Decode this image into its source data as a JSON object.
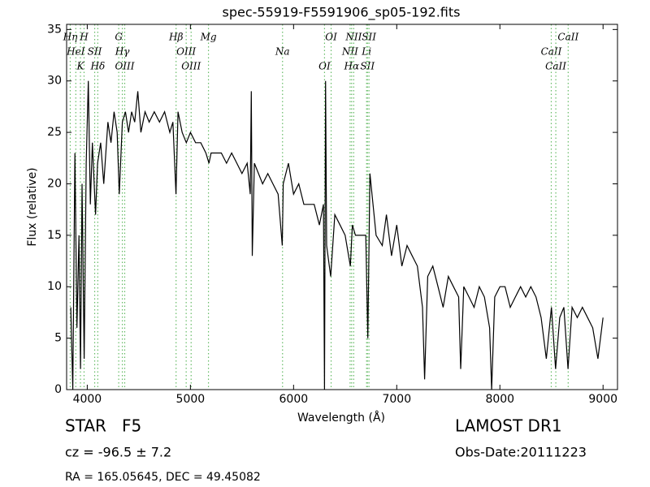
{
  "chart_data": {
    "type": "line",
    "title": "spec-55919-F5591906_sp05-192.fits",
    "x_label": "Wavelength (Å)",
    "y_label": "Flux (relative)",
    "xlim": [
      3800,
      9140
    ],
    "ylim": [
      0,
      35.5
    ],
    "xticks": [
      4000,
      5000,
      6000,
      7000,
      8000,
      9000
    ],
    "yticks": [
      0,
      5,
      10,
      15,
      20,
      25,
      30,
      35
    ],
    "series": [
      {
        "name": "spectrum",
        "color": "#000000",
        "x": [
          3840,
          3860,
          3880,
          3900,
          3920,
          3935,
          3950,
          3970,
          3990,
          4010,
          4030,
          4050,
          4080,
          4100,
          4130,
          4160,
          4200,
          4230,
          4260,
          4290,
          4310,
          4340,
          4370,
          4400,
          4430,
          4460,
          4490,
          4520,
          4560,
          4600,
          4650,
          4700,
          4750,
          4800,
          4830,
          4860,
          4880,
          4920,
          4960,
          5000,
          5050,
          5100,
          5150,
          5180,
          5200,
          5250,
          5300,
          5350,
          5400,
          5450,
          5500,
          5550,
          5580,
          5590,
          5600,
          5620,
          5700,
          5750,
          5800,
          5850,
          5890,
          5900,
          5950,
          6000,
          6050,
          6100,
          6150,
          6200,
          6250,
          6290,
          6300,
          6310,
          6320,
          6360,
          6400,
          6450,
          6500,
          6550,
          6570,
          6600,
          6650,
          6700,
          6720,
          6740,
          6800,
          6860,
          6900,
          6950,
          7000,
          7050,
          7100,
          7150,
          7200,
          7250,
          7270,
          7300,
          7350,
          7400,
          7450,
          7500,
          7550,
          7600,
          7620,
          7650,
          7700,
          7750,
          7800,
          7850,
          7900,
          7920,
          7950,
          8000,
          8050,
          8100,
          8150,
          8200,
          8250,
          8300,
          8350,
          8400,
          8450,
          8500,
          8540,
          8580,
          8620,
          8660,
          8700,
          8750,
          8800,
          8850,
          8900,
          8950,
          9000
        ],
        "values": [
          8,
          0,
          23,
          6,
          15,
          2,
          20,
          3,
          22,
          30,
          18,
          24,
          17,
          22,
          24,
          20,
          26,
          24,
          27,
          25,
          19,
          26,
          27,
          25,
          27,
          26,
          29,
          25,
          27,
          26,
          27,
          26,
          27,
          25,
          26,
          19,
          27,
          25,
          24,
          25,
          24,
          24,
          23,
          22,
          23,
          23,
          23,
          22,
          23,
          22,
          21,
          22,
          19,
          29,
          13,
          22,
          20,
          21,
          20,
          19,
          14,
          20,
          22,
          19,
          20,
          18,
          18,
          18,
          16,
          18,
          0,
          30,
          14,
          11,
          17,
          16,
          15,
          12,
          16,
          15,
          15,
          15,
          5,
          21,
          15,
          14,
          17,
          13,
          16,
          12,
          14,
          13,
          12,
          8,
          1,
          11,
          12,
          10,
          8,
          11,
          10,
          9,
          2,
          10,
          9,
          8,
          10,
          9,
          6,
          0,
          9,
          10,
          10,
          8,
          9,
          10,
          9,
          10,
          9,
          7,
          3,
          8,
          2,
          7,
          8,
          2,
          8,
          7,
          8,
          7,
          6,
          3,
          7
        ]
      }
    ],
    "line_color": "#66bb66",
    "lines": [
      {
        "label": "Hη",
        "x": 3835
      },
      {
        "label": "HeI",
        "x": 3889
      },
      {
        "label": "K",
        "x": 3934
      },
      {
        "label": "H",
        "x": 3969
      },
      {
        "label": "SII",
        "x": 4072
      },
      {
        "label": "Hδ",
        "x": 4102
      },
      {
        "label": "G",
        "x": 4305
      },
      {
        "label": "Hγ",
        "x": 4340
      },
      {
        "label": "OIII",
        "x": 4363
      },
      {
        "label": "Hβ",
        "x": 4861
      },
      {
        "label": "OIII",
        "x": 4959
      },
      {
        "label": "OIII",
        "x": 5007
      },
      {
        "label": "Mg",
        "x": 5175
      },
      {
        "label": "Na",
        "x": 5893
      },
      {
        "label": "OI",
        "x": 6300
      },
      {
        "label": "OI",
        "x": 6364
      },
      {
        "label": "NII",
        "x": 6548
      },
      {
        "label": "Hα",
        "x": 6563
      },
      {
        "label": "NII",
        "x": 6583
      },
      {
        "label": "Li",
        "x": 6708
      },
      {
        "label": "SII",
        "x": 6716
      },
      {
        "label": "SII",
        "x": 6731
      },
      {
        "label": "CaII",
        "x": 8498
      },
      {
        "label": "CaII",
        "x": 8542
      },
      {
        "label": "CaII",
        "x": 8662
      }
    ]
  },
  "footer": {
    "object": "STAR   F5",
    "cz": "cz = -96.5 ± 7.2",
    "coords": "RA = 165.05645, DEC = 49.45082",
    "survey": "LAMOST DR1",
    "date": "Obs-Date:20111223"
  }
}
